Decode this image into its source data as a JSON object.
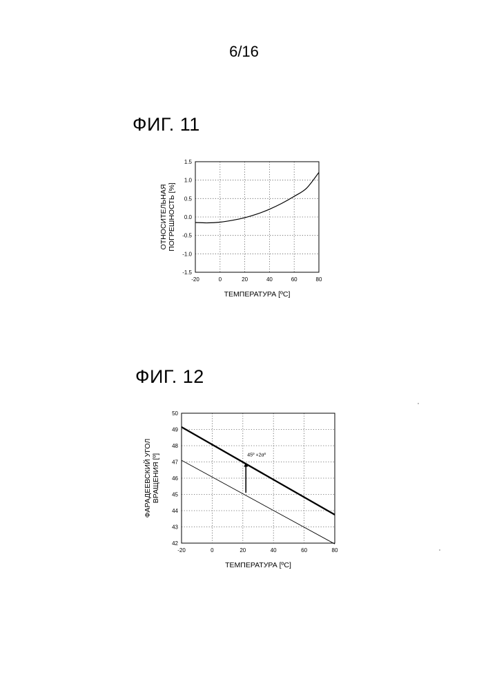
{
  "page": {
    "number": "6/16"
  },
  "figures": [
    {
      "caption": "ФИГ. 11"
    },
    {
      "caption": "ФИГ. 12"
    }
  ],
  "chart_data": [
    {
      "type": "line",
      "xlabel": "ТЕМПЕРАТУРА [ºC]",
      "ylabel": [
        "ОТНОСИТЕЛЬНАЯ",
        "ПОГРЕШНОСТЬ [%]"
      ],
      "xlim": [
        -20,
        80
      ],
      "ylim": [
        -1.5,
        1.5
      ],
      "xticks": [
        "-20",
        "0",
        "20",
        "40",
        "60",
        "80"
      ],
      "xtick_values": [
        -20,
        0,
        20,
        40,
        60,
        80
      ],
      "yticks": [
        "1.5",
        "1.0",
        "0.5",
        "0.0",
        "-0.5",
        "-1.0",
        "-1.5"
      ],
      "ytick_values": [
        1.5,
        1.0,
        0.5,
        0.0,
        -0.5,
        -1.0,
        -1.5
      ],
      "grid": true,
      "series": [
        {
          "x": [
            -20,
            -10,
            0,
            10,
            20,
            30,
            40,
            50,
            60,
            70,
            80
          ],
          "y": [
            -0.15,
            -0.16,
            -0.14,
            -0.09,
            -0.02,
            0.08,
            0.21,
            0.37,
            0.56,
            0.78,
            1.21
          ],
          "color": "#000000"
        }
      ]
    },
    {
      "type": "line",
      "xlabel": "ТЕМПЕРАТУРА [ºC]",
      "ylabel": [
        "ФАРАДЕЕВСКИЙ УГОЛ",
        "ВРАЩЕНИЯ [º]"
      ],
      "xlim": [
        -20,
        80
      ],
      "ylim": [
        42,
        50
      ],
      "xticks": [
        "-20",
        "0",
        "20",
        "40",
        "60",
        "80"
      ],
      "xtick_values": [
        -20,
        0,
        20,
        40,
        60,
        80
      ],
      "yticks": [
        "50",
        "49",
        "48",
        "47",
        "46",
        "45",
        "44",
        "43",
        "42"
      ],
      "ytick_values": [
        50,
        49,
        48,
        47,
        46,
        45,
        44,
        43,
        42
      ],
      "grid": true,
      "series": [
        {
          "x": [
            -20,
            80
          ],
          "y": [
            49.15,
            43.75
          ],
          "color": "#000000",
          "width": "thick"
        },
        {
          "x": [
            -20,
            80
          ],
          "y": [
            47.1,
            41.95
          ],
          "color": "#000000",
          "width": "thin"
        }
      ],
      "annotation": {
        "text": "45º  +2αº",
        "x": 22,
        "y_from": 45.1,
        "y_to": 47.0
      }
    }
  ]
}
